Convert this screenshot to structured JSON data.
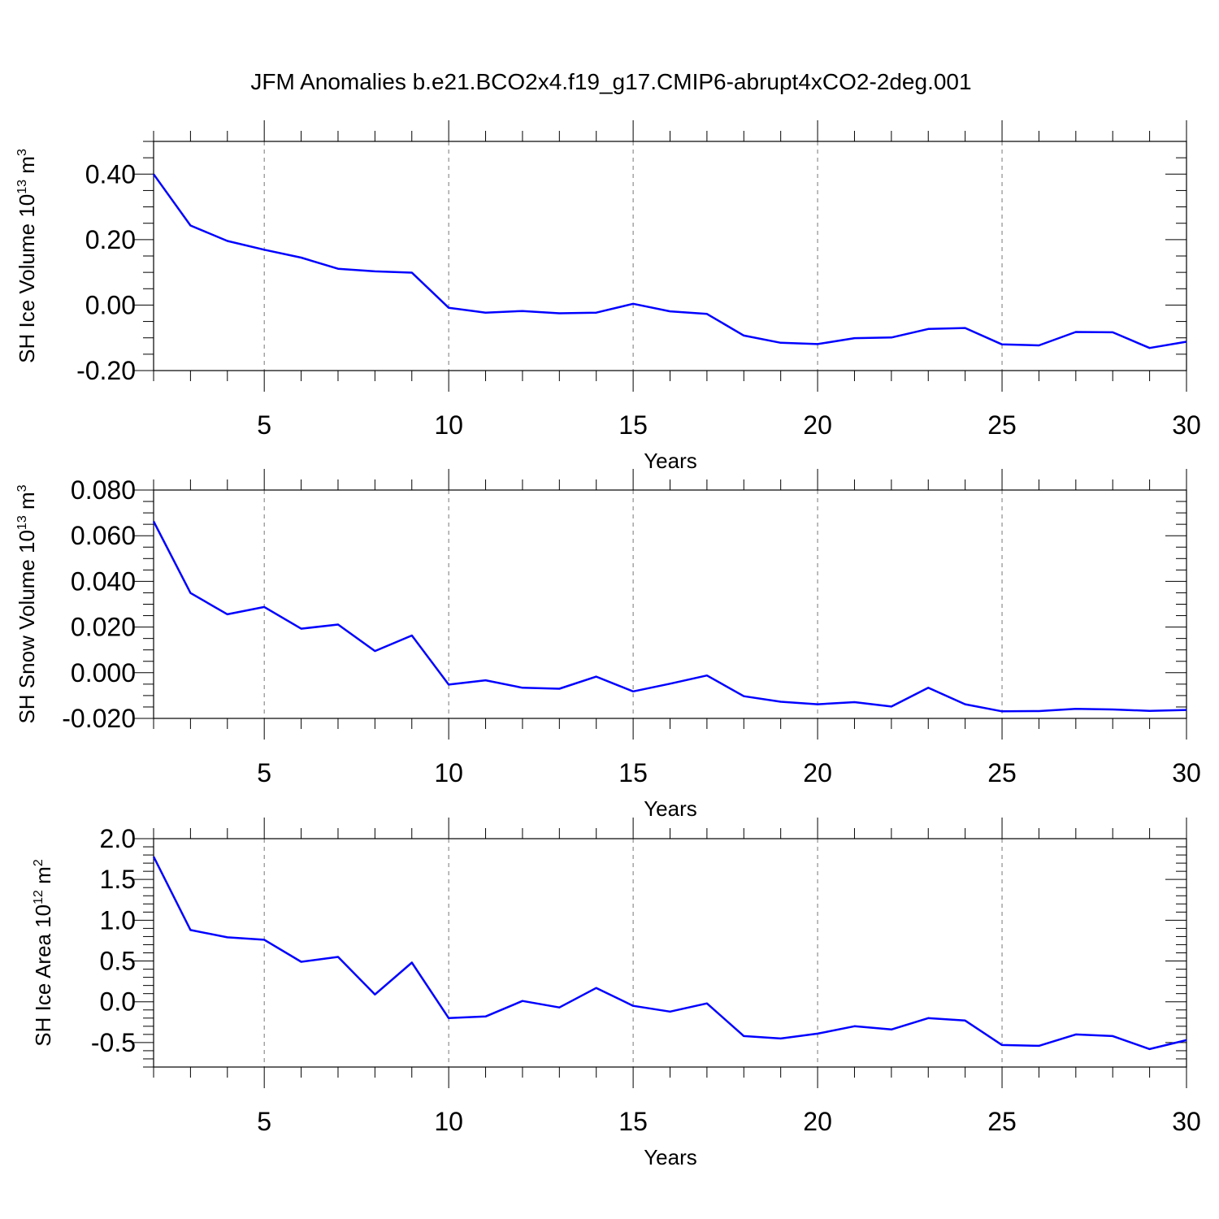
{
  "title": "JFM Anomalies b.e21.BCO2x4.f19_g17.CMIP6-abrupt4xCO2-2deg.001",
  "colors": {
    "line": "#0000ff",
    "axis": "#000000",
    "grid": "#777777"
  },
  "chart_data": [
    {
      "type": "line",
      "xlabel": "Years",
      "ylabel_text": "SH Ice Volume 10",
      "ylabel_exp": "13",
      "ylabel_unit": " m",
      "ylabel_unit_exp": "3",
      "xlim": [
        2,
        30
      ],
      "ylim": [
        -0.2,
        0.5
      ],
      "yticks": [
        -0.2,
        0.0,
        0.2,
        0.4
      ],
      "ytick_labels": [
        "-0.20",
        "0.00",
        "0.20",
        "0.40"
      ],
      "yminor_step": 0.05,
      "xticks": [
        5,
        10,
        15,
        20,
        25,
        30
      ],
      "xtick_labels": [
        "5",
        "10",
        "15",
        "20",
        "25",
        "30"
      ],
      "grid_x": [
        5,
        10,
        15,
        20,
        25
      ],
      "series": [
        {
          "x": [
            2,
            3,
            4,
            5,
            6,
            7,
            8,
            9,
            10,
            11,
            12,
            13,
            14,
            15,
            16,
            17,
            18,
            19,
            20,
            21,
            22,
            23,
            24,
            25,
            26,
            27,
            28,
            29,
            30
          ],
          "values": [
            0.4,
            0.243,
            0.196,
            0.169,
            0.145,
            0.111,
            0.103,
            0.099,
            -0.008,
            -0.023,
            -0.018,
            -0.025,
            -0.023,
            0.004,
            -0.019,
            -0.027,
            -0.093,
            -0.115,
            -0.119,
            -0.101,
            -0.099,
            -0.073,
            -0.07,
            -0.12,
            -0.123,
            -0.082,
            -0.083,
            -0.131,
            -0.112
          ]
        }
      ]
    },
    {
      "type": "line",
      "xlabel": "Years",
      "ylabel_text": "SH Snow Volume 10",
      "ylabel_exp": "13",
      "ylabel_unit": " m",
      "ylabel_unit_exp": "3",
      "xlim": [
        2,
        30
      ],
      "ylim": [
        -0.02,
        0.08
      ],
      "yticks": [
        -0.02,
        0.0,
        0.02,
        0.04,
        0.06,
        0.08
      ],
      "ytick_labels": [
        "-0.020",
        "0.000",
        "0.020",
        "0.040",
        "0.060",
        "0.080"
      ],
      "yminor_step": 0.005,
      "xticks": [
        5,
        10,
        15,
        20,
        25,
        30
      ],
      "xtick_labels": [
        "5",
        "10",
        "15",
        "20",
        "25",
        "30"
      ],
      "grid_x": [
        5,
        10,
        15,
        20,
        25
      ],
      "series": [
        {
          "x": [
            2,
            3,
            4,
            5,
            6,
            7,
            8,
            9,
            10,
            11,
            12,
            13,
            14,
            15,
            16,
            17,
            18,
            19,
            20,
            21,
            22,
            23,
            24,
            25,
            26,
            27,
            28,
            29,
            30
          ],
          "values": [
            0.0663,
            0.0349,
            0.0256,
            0.0288,
            0.0193,
            0.0211,
            0.0095,
            0.0163,
            -0.0052,
            -0.0033,
            -0.0066,
            -0.007,
            -0.0017,
            -0.0082,
            -0.0048,
            -0.0012,
            -0.0103,
            -0.0127,
            -0.0138,
            -0.0129,
            -0.0148,
            -0.0066,
            -0.0138,
            -0.0169,
            -0.0168,
            -0.0158,
            -0.0161,
            -0.0167,
            -0.0163
          ]
        }
      ]
    },
    {
      "type": "line",
      "xlabel": "Years",
      "ylabel_text": "SH Ice Area 10",
      "ylabel_exp": "12",
      "ylabel_unit": " m",
      "ylabel_unit_exp": "2",
      "xlim": [
        2,
        30
      ],
      "ylim": [
        -0.8,
        2.0
      ],
      "yticks": [
        -0.5,
        0.0,
        0.5,
        1.0,
        1.5,
        2.0
      ],
      "ytick_labels": [
        "-0.5",
        "0.0",
        "0.5",
        "1.0",
        "1.5",
        "2.0"
      ],
      "yminor_step": 0.1,
      "xticks": [
        5,
        10,
        15,
        20,
        25,
        30
      ],
      "xtick_labels": [
        "5",
        "10",
        "15",
        "20",
        "25",
        "30"
      ],
      "grid_x": [
        5,
        10,
        15,
        20,
        25
      ],
      "series": [
        {
          "x": [
            2,
            3,
            4,
            5,
            6,
            7,
            8,
            9,
            10,
            11,
            12,
            13,
            14,
            15,
            16,
            17,
            18,
            19,
            20,
            21,
            22,
            23,
            24,
            25,
            26,
            27,
            28,
            29,
            30
          ],
          "values": [
            1.78,
            0.88,
            0.79,
            0.76,
            0.49,
            0.55,
            0.09,
            0.48,
            -0.2,
            -0.18,
            0.01,
            -0.07,
            0.17,
            -0.05,
            -0.12,
            -0.02,
            -0.42,
            -0.45,
            -0.39,
            -0.3,
            -0.34,
            -0.2,
            -0.23,
            -0.53,
            -0.54,
            -0.4,
            -0.42,
            -0.58,
            -0.47
          ]
        }
      ]
    }
  ]
}
